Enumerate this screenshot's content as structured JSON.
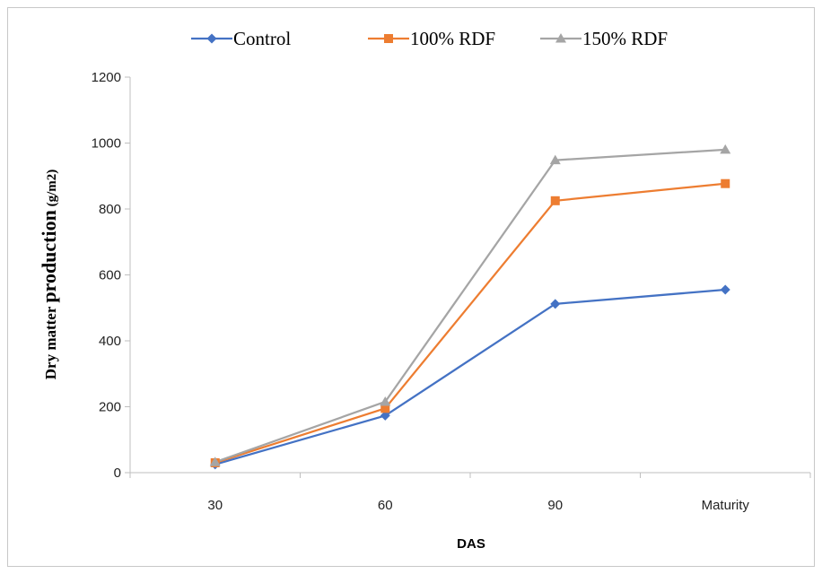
{
  "chart_data": {
    "type": "line",
    "categories": [
      "30",
      "60",
      "90",
      "Maturity"
    ],
    "series": [
      {
        "name": "Control",
        "values": [
          25,
          173,
          512,
          555
        ],
        "color": "#4472c4",
        "marker": "diamond"
      },
      {
        "name": "100% RDF",
        "values": [
          30,
          195,
          825,
          877
        ],
        "color": "#ed7d31",
        "marker": "square"
      },
      {
        "name": "150% RDF",
        "values": [
          32,
          215,
          948,
          980
        ],
        "color": "#a5a5a5",
        "marker": "triangle"
      }
    ],
    "xlabel": "DAS",
    "ylabel": {
      "main": "Dry matter ",
      "emphasis": "production",
      "unit": " (g/m2)"
    },
    "ylim": [
      0,
      1200
    ],
    "yticks": [
      0,
      200,
      400,
      600,
      800,
      1000,
      1200
    ],
    "grid": false,
    "legend_position": "top"
  }
}
